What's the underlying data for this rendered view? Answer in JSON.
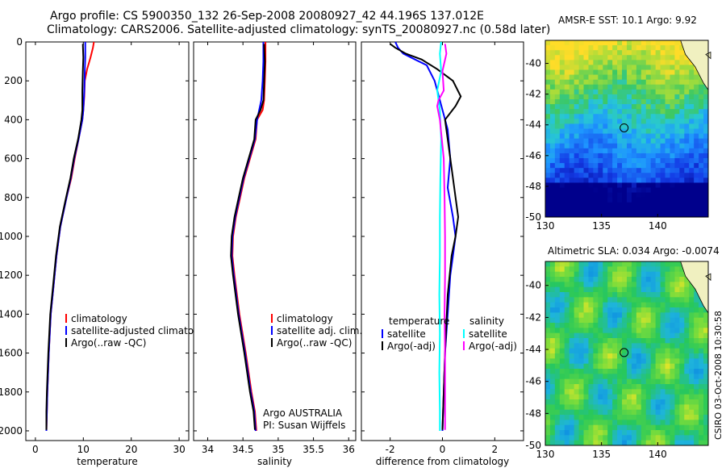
{
  "header": {
    "line1": "Argo profile: CS 5900350_132 26-Sep-2008 20080927_42 44.196S 137.012E",
    "line2": "Climatology: CARS2006. Satellite-adjusted climatology: synTS_20080927.nc (0.58d later)"
  },
  "credit": "CSIRO 03-Oct-2008 10:30:58",
  "colors": {
    "red": "#ff0000",
    "blue": "#0000ff",
    "black": "#000000",
    "cyan": "#00ffff",
    "magenta": "#ff00ff"
  },
  "chart_data": [
    {
      "type": "line",
      "xlabel": "temperature",
      "xlim": [
        -2,
        32
      ],
      "ylim": [
        0,
        2050
      ],
      "y_reversed": true,
      "xticks": [
        0,
        10,
        20,
        30
      ],
      "yticks": [
        0,
        200,
        400,
        600,
        800,
        1000,
        1200,
        1400,
        1600,
        1800,
        2000
      ],
      "legend": [
        "climatology",
        "satellite-adjusted climatology",
        "Argo(..raw -QC)"
      ],
      "series": [
        {
          "name": "climatology",
          "color": "#ff0000",
          "x": [
            12.2,
            12.0,
            11.5,
            10.8,
            10.3,
            10.2,
            10.0,
            9.8,
            9.0,
            8.2,
            7.5,
            6.5,
            5.2,
            4.4,
            3.8,
            3.2,
            2.8,
            2.5,
            2.4,
            2.3
          ],
          "y": [
            0,
            30,
            80,
            140,
            200,
            280,
            350,
            400,
            500,
            600,
            700,
            800,
            950,
            1100,
            1250,
            1400,
            1600,
            1800,
            1900,
            2000
          ]
        },
        {
          "name": "satellite-adjusted climatology",
          "color": "#0000ff",
          "x": [
            10.4,
            10.4,
            10.3,
            10.2,
            10.1,
            10.0,
            9.8,
            9.0,
            8.1,
            7.4,
            6.5,
            5.2,
            4.4,
            3.8,
            3.2,
            2.8,
            2.5,
            2.4,
            2.3
          ],
          "y": [
            0,
            80,
            150,
            250,
            300,
            350,
            400,
            500,
            600,
            700,
            800,
            950,
            1100,
            1250,
            1400,
            1600,
            1800,
            1900,
            2000
          ]
        },
        {
          "name": "Argo(..raw -QC)",
          "color": "#000000",
          "x": [
            9.9,
            10.0,
            9.9,
            9.8,
            9.8,
            9.8,
            9.6,
            8.9,
            8.0,
            7.3,
            6.4,
            5.1,
            4.3,
            3.7,
            3.1,
            2.7,
            2.4,
            2.3,
            2.3
          ],
          "y": [
            10,
            80,
            150,
            250,
            300,
            350,
            400,
            500,
            600,
            700,
            800,
            950,
            1100,
            1250,
            1400,
            1600,
            1800,
            1900,
            1995
          ]
        }
      ]
    },
    {
      "type": "line",
      "xlabel": "salinity",
      "xlim": [
        33.8,
        36.1
      ],
      "ylim": [
        0,
        2050
      ],
      "y_reversed": true,
      "xticks": [
        34,
        34.5,
        35,
        35.5,
        36
      ],
      "yticks": [
        0,
        200,
        400,
        600,
        800,
        1000,
        1200,
        1400,
        1600,
        1800,
        2000
      ],
      "legend": [
        "climatology",
        "satellite adj. clim.",
        "Argo(..raw -QC)"
      ],
      "annotation": [
        "Argo AUSTRALIA",
        "PI: Susan Wijffels"
      ],
      "series": [
        {
          "name": "climatology",
          "color": "#ff0000",
          "x": [
            34.82,
            34.82,
            34.81,
            34.8,
            34.78,
            34.7,
            34.68,
            34.6,
            34.52,
            34.46,
            34.4,
            34.36,
            34.35,
            34.38,
            34.45,
            34.54,
            34.62,
            34.67,
            34.69
          ],
          "y": [
            0,
            100,
            200,
            300,
            350,
            400,
            500,
            600,
            700,
            800,
            900,
            1000,
            1100,
            1200,
            1400,
            1600,
            1800,
            1900,
            2000
          ]
        },
        {
          "name": "satellite adj. clim.",
          "color": "#0000ff",
          "x": [
            34.79,
            34.79,
            34.78,
            34.76,
            34.7,
            34.67,
            34.59,
            34.51,
            34.45,
            34.39,
            34.35,
            34.34,
            34.37,
            34.44,
            34.53,
            34.61,
            34.66,
            34.68
          ],
          "y": [
            0,
            100,
            200,
            300,
            400,
            500,
            600,
            700,
            800,
            900,
            1000,
            1100,
            1200,
            1400,
            1600,
            1800,
            1900,
            2000
          ]
        },
        {
          "name": "Argo(..raw -QC)",
          "color": "#000000",
          "x": [
            34.8,
            34.81,
            34.8,
            34.79,
            34.75,
            34.68,
            34.66,
            34.58,
            34.5,
            34.44,
            34.38,
            34.34,
            34.33,
            34.36,
            34.43,
            34.52,
            34.6,
            34.65,
            34.67
          ],
          "y": [
            10,
            100,
            200,
            300,
            350,
            400,
            500,
            600,
            700,
            800,
            900,
            1000,
            1100,
            1200,
            1400,
            1600,
            1800,
            1900,
            1995
          ]
        }
      ]
    },
    {
      "type": "line",
      "xlabel": "difference from climatology",
      "xlim": [
        -3.1,
        3.1
      ],
      "ylim": [
        0,
        2050
      ],
      "y_reversed": true,
      "xticks": [
        -2,
        0,
        2
      ],
      "yticks": [
        0,
        200,
        400,
        600,
        800,
        1000,
        1200,
        1400,
        1600,
        1800,
        2000
      ],
      "legend_titles": [
        "temperature",
        "salinity"
      ],
      "legend": [
        "satellite",
        "Argo(-adj)",
        "satellite",
        "Argo(-adj)"
      ],
      "series": [
        {
          "name": "satellite",
          "group": "temperature",
          "color": "#0000ff",
          "x": [
            -1.8,
            -1.7,
            -1.5,
            -1.2,
            -0.6,
            -0.3,
            -0.1,
            0.2,
            0.3,
            0.2,
            0.4,
            0.5,
            0.4,
            0.3,
            0.2,
            0.1,
            0.05,
            0.0
          ],
          "y": [
            0,
            30,
            60,
            80,
            120,
            200,
            300,
            450,
            600,
            750,
            900,
            1000,
            1100,
            1200,
            1400,
            1600,
            1800,
            2000
          ]
        },
        {
          "name": "Argo(-adj)",
          "group": "temperature",
          "color": "#000000",
          "x": [
            -2.0,
            -1.8,
            -1.4,
            -0.8,
            -0.2,
            0.4,
            0.7,
            0.5,
            0.1,
            0.2,
            0.4,
            0.6,
            0.5,
            0.35,
            0.2,
            0.1,
            0.05,
            0.0
          ],
          "y": [
            10,
            30,
            60,
            90,
            140,
            200,
            280,
            330,
            400,
            500,
            700,
            900,
            1000,
            1100,
            1300,
            1600,
            1800,
            1995
          ]
        },
        {
          "name": "satellite",
          "group": "salinity",
          "color": "#00ffff",
          "x": [
            -0.05,
            -0.1,
            -0.05,
            -0.2,
            -0.1,
            -0.05,
            -0.08,
            -0.1,
            -0.1,
            -0.12,
            -0.1,
            -0.12,
            -0.1,
            -0.1
          ],
          "y": [
            0,
            60,
            150,
            250,
            350,
            500,
            700,
            900,
            1100,
            1300,
            1500,
            1700,
            1900,
            2000
          ]
        },
        {
          "name": "Argo(-adj)",
          "group": "salinity",
          "color": "#ff00ff",
          "x": [
            0.1,
            0.15,
            0.0,
            0.05,
            -0.15,
            -0.2,
            -0.1,
            0.05,
            0.08,
            0.1,
            0.1,
            0.08,
            0.1,
            0.1,
            0.1
          ],
          "y": [
            10,
            60,
            150,
            250,
            300,
            330,
            400,
            600,
            800,
            1000,
            1200,
            1400,
            1600,
            1800,
            1995
          ]
        }
      ]
    },
    {
      "type": "heatmap",
      "title": "AMSR-E SST: 10.1 Argo: 9.92",
      "xlim": [
        130,
        144.5
      ],
      "ylim": [
        -50,
        -38.5
      ],
      "xticks": [
        130,
        135,
        140
      ],
      "yticks": [
        -40,
        -42,
        -44,
        -46,
        -48,
        -50
      ],
      "marker": {
        "lon": 137.012,
        "lat": -44.196
      }
    },
    {
      "type": "heatmap",
      "title": "Altimetric SLA: 0.034 Argo: -0.0074",
      "xlim": [
        130,
        144.5
      ],
      "ylim": [
        -50,
        -38.5
      ],
      "xticks": [
        130,
        135,
        140
      ],
      "yticks": [
        -40,
        -42,
        -44,
        -46,
        -48,
        -50
      ],
      "marker": {
        "lon": 137.012,
        "lat": -44.196
      }
    }
  ]
}
